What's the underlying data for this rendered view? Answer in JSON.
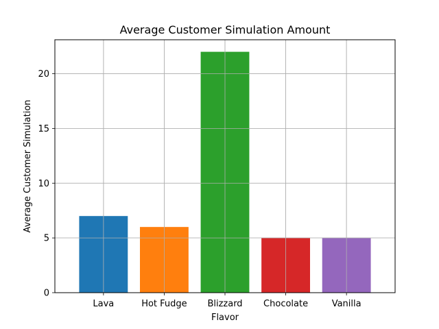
{
  "chart_data": {
    "type": "bar",
    "title": "Average Customer Simulation Amount",
    "xlabel": "Flavor",
    "ylabel": "Average Customer Simulation",
    "categories": [
      "Lava",
      "Hot Fudge",
      "Blizzard",
      "Chocolate",
      "Vanilla"
    ],
    "values": [
      7,
      6,
      22,
      5,
      5
    ],
    "colors": [
      "#1f77b4",
      "#ff7f0e",
      "#2ca02c",
      "#d62728",
      "#9467bd"
    ],
    "ylim": [
      0,
      23.1
    ],
    "yticks": [
      0,
      5,
      10,
      15,
      20
    ],
    "grid": true,
    "legend": "none"
  }
}
